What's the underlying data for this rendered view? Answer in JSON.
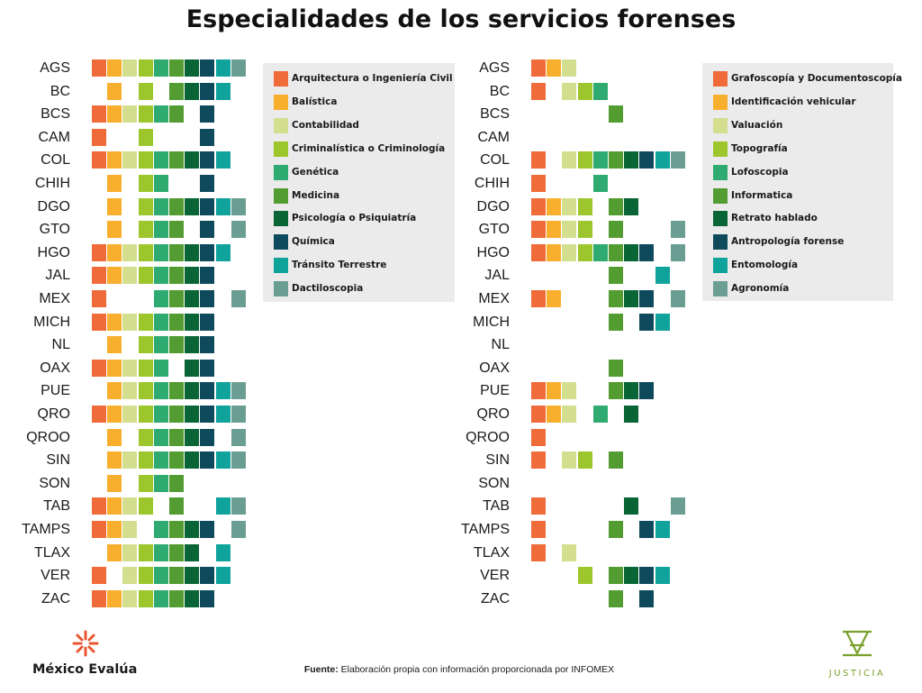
{
  "title": "Especialidades de los servicios forenses",
  "source": {
    "prefix": "Fuente:",
    "text": " Elaboración propia con información proporcionada por INFOMEX"
  },
  "logos": {
    "left_text": "México Evalúa",
    "right_text": "JUSTICIA"
  },
  "chart_data": [
    {
      "type": "table",
      "legend": [
        {
          "label": "Arquitectura o Ingeniería Civil",
          "color": "#ef6b3a"
        },
        {
          "label": "Balística",
          "color": "#f9af2e"
        },
        {
          "label": "Contabilidad",
          "color": "#d3de8f"
        },
        {
          "label": "Criminalística o Criminología",
          "color": "#9dc62d"
        },
        {
          "label": "Genética",
          "color": "#2faa71"
        },
        {
          "label": "Medicina",
          "color": "#539c32"
        },
        {
          "label": "Psicología o Psiquiatría",
          "color": "#096536"
        },
        {
          "label": "Química",
          "color": "#0f4a5c"
        },
        {
          "label": "Tránsito Terrestre",
          "color": "#0fa39c"
        },
        {
          "label": "Dactiloscopia",
          "color": "#6b9e92"
        }
      ],
      "rows": [
        {
          "state": "AGS",
          "cells": [
            0,
            1,
            2,
            3,
            4,
            5,
            6,
            7,
            8,
            9
          ]
        },
        {
          "state": "BC",
          "cells": [
            1,
            3,
            5,
            6,
            7,
            8
          ]
        },
        {
          "state": "BCS",
          "cells": [
            0,
            1,
            2,
            3,
            4,
            5,
            7
          ]
        },
        {
          "state": "CAM",
          "cells": [
            0,
            3,
            7
          ]
        },
        {
          "state": "COL",
          "cells": [
            0,
            1,
            2,
            3,
            4,
            5,
            6,
            7,
            8
          ]
        },
        {
          "state": "CHIH",
          "cells": [
            1,
            3,
            4,
            7
          ]
        },
        {
          "state": "DGO",
          "cells": [
            1,
            3,
            4,
            5,
            6,
            7,
            8,
            9
          ]
        },
        {
          "state": "GTO",
          "cells": [
            1,
            3,
            4,
            5,
            7,
            9
          ]
        },
        {
          "state": "HGO",
          "cells": [
            0,
            1,
            2,
            3,
            4,
            5,
            6,
            7,
            8
          ]
        },
        {
          "state": "JAL",
          "cells": [
            0,
            1,
            2,
            3,
            4,
            5,
            6,
            7
          ]
        },
        {
          "state": "MEX",
          "cells": [
            0,
            4,
            5,
            6,
            7,
            9
          ]
        },
        {
          "state": "MICH",
          "cells": [
            0,
            1,
            2,
            3,
            4,
            5,
            6,
            7
          ]
        },
        {
          "state": "NL",
          "cells": [
            1,
            3,
            4,
            5,
            6,
            7
          ]
        },
        {
          "state": "OAX",
          "cells": [
            0,
            1,
            2,
            3,
            4,
            6,
            7
          ]
        },
        {
          "state": "PUE",
          "cells": [
            1,
            2,
            3,
            4,
            5,
            6,
            7,
            8,
            9
          ]
        },
        {
          "state": "QRO",
          "cells": [
            0,
            1,
            2,
            3,
            4,
            5,
            6,
            7,
            8,
            9
          ]
        },
        {
          "state": "QROO",
          "cells": [
            1,
            3,
            4,
            5,
            6,
            7,
            9
          ]
        },
        {
          "state": "SIN",
          "cells": [
            1,
            2,
            3,
            4,
            5,
            6,
            7,
            8,
            9
          ]
        },
        {
          "state": "SON",
          "cells": [
            1,
            3,
            4,
            5
          ]
        },
        {
          "state": "TAB",
          "cells": [
            0,
            1,
            2,
            3,
            5,
            8,
            9
          ]
        },
        {
          "state": "TAMPS",
          "cells": [
            0,
            1,
            2,
            4,
            5,
            6,
            7,
            9
          ]
        },
        {
          "state": "TLAX",
          "cells": [
            1,
            2,
            3,
            4,
            5,
            6,
            8
          ]
        },
        {
          "state": "VER",
          "cells": [
            0,
            2,
            3,
            4,
            5,
            6,
            7,
            8
          ]
        },
        {
          "state": "ZAC",
          "cells": [
            0,
            1,
            2,
            3,
            4,
            5,
            6,
            7
          ]
        }
      ]
    },
    {
      "type": "table",
      "legend": [
        {
          "label": "Grafoscopía y Documentoscopía",
          "color": "#ef6b3a"
        },
        {
          "label": "Identificación vehicular",
          "color": "#f9af2e"
        },
        {
          "label": "Valuación",
          "color": "#d3de8f"
        },
        {
          "label": "Topografía",
          "color": "#9dc62d"
        },
        {
          "label": "Lofoscopia",
          "color": "#2faa71"
        },
        {
          "label": "Informatica",
          "color": "#539c32"
        },
        {
          "label": "Retrato hablado",
          "color": "#096536"
        },
        {
          "label": "Antropología forense",
          "color": "#0f4a5c"
        },
        {
          "label": "Entomología",
          "color": "#0fa39c"
        },
        {
          "label": "Agronomía",
          "color": "#6b9e92"
        }
      ],
      "rows": [
        {
          "state": "AGS",
          "cells": [
            0,
            1,
            2
          ]
        },
        {
          "state": "BC",
          "cells": [
            0,
            2,
            3,
            4
          ]
        },
        {
          "state": "BCS",
          "cells": [
            5
          ]
        },
        {
          "state": "CAM",
          "cells": []
        },
        {
          "state": "COL",
          "cells": [
            0,
            2,
            3,
            4,
            5,
            6,
            7,
            8,
            9
          ]
        },
        {
          "state": "CHIH",
          "cells": [
            0,
            4
          ]
        },
        {
          "state": "DGO",
          "cells": [
            0,
            1,
            2,
            3,
            5,
            6
          ]
        },
        {
          "state": "GTO",
          "cells": [
            0,
            1,
            2,
            3,
            5,
            9
          ]
        },
        {
          "state": "HGO",
          "cells": [
            0,
            1,
            2,
            3,
            4,
            5,
            6,
            7,
            9
          ]
        },
        {
          "state": "JAL",
          "cells": [
            5,
            8
          ]
        },
        {
          "state": "MEX",
          "cells": [
            0,
            1,
            5,
            6,
            7,
            9
          ]
        },
        {
          "state": "MICH",
          "cells": [
            5,
            7,
            8
          ]
        },
        {
          "state": "NL",
          "cells": []
        },
        {
          "state": "OAX",
          "cells": [
            5
          ]
        },
        {
          "state": "PUE",
          "cells": [
            0,
            1,
            2,
            5,
            6,
            7
          ]
        },
        {
          "state": "QRO",
          "cells": [
            0,
            1,
            2,
            4,
            6
          ]
        },
        {
          "state": "QROO",
          "cells": [
            0
          ]
        },
        {
          "state": "SIN",
          "cells": [
            0,
            2,
            3,
            5
          ]
        },
        {
          "state": "SON",
          "cells": []
        },
        {
          "state": "TAB",
          "cells": [
            0,
            6,
            9
          ]
        },
        {
          "state": "TAMPS",
          "cells": [
            0,
            5,
            7,
            8
          ]
        },
        {
          "state": "TLAX",
          "cells": [
            0,
            2
          ]
        },
        {
          "state": "VER",
          "cells": [
            3,
            5,
            6,
            7,
            8
          ]
        },
        {
          "state": "ZAC",
          "cells": [
            5,
            7
          ]
        }
      ]
    }
  ]
}
